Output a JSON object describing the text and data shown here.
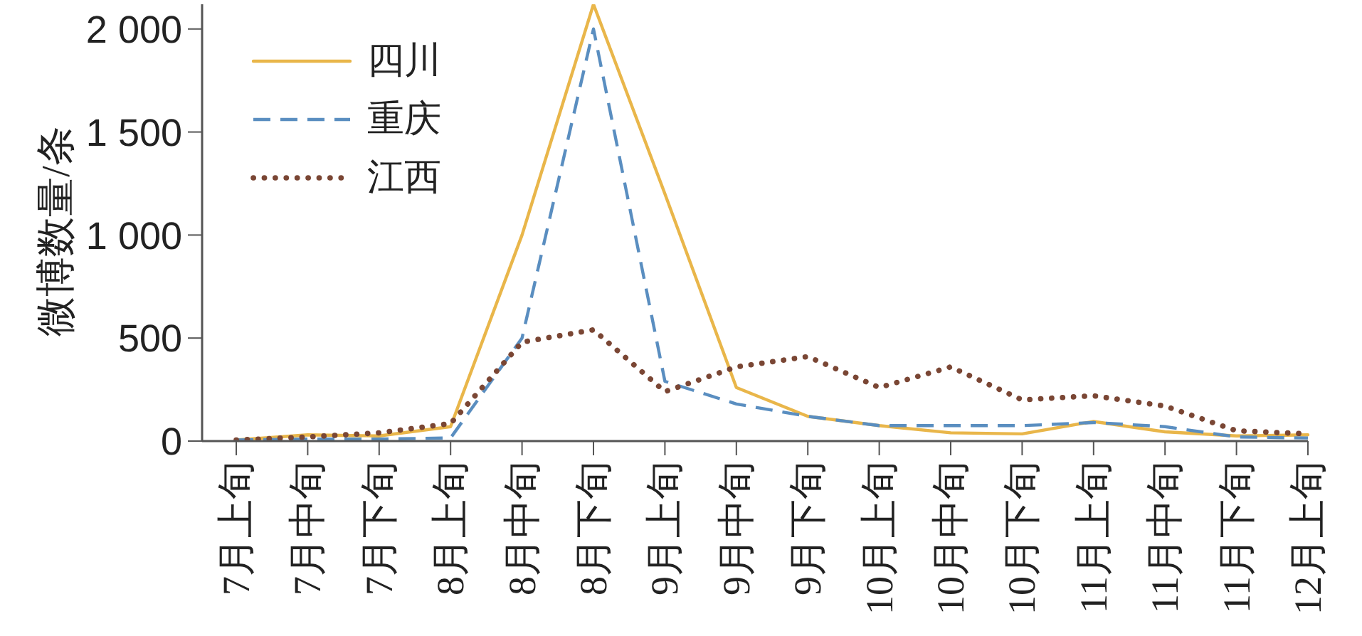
{
  "chart_data": {
    "type": "line",
    "ylabel": "微博数量/条",
    "categories": [
      "7月上旬",
      "7月中旬",
      "7月下旬",
      "8月上旬",
      "8月中旬",
      "8月下旬",
      "9月上旬",
      "9月中旬",
      "9月下旬",
      "10月上旬",
      "10月中旬",
      "10月下旬",
      "11月上旬",
      "11月中旬",
      "11月下旬",
      "12月上旬"
    ],
    "series": [
      {
        "name": "四川",
        "color": "#e9b64a",
        "line_style": "solid",
        "values": [
          5,
          30,
          25,
          70,
          1000,
          2120,
          1200,
          260,
          120,
          75,
          40,
          35,
          95,
          45,
          25,
          30
        ]
      },
      {
        "name": "重庆",
        "color": "#5a8ec0",
        "line_style": "dashed",
        "values": [
          5,
          10,
          10,
          15,
          500,
          2000,
          290,
          180,
          120,
          75,
          75,
          75,
          90,
          70,
          20,
          15
        ]
      },
      {
        "name": "江西",
        "color": "#7a4634",
        "line_style": "dotted",
        "values": [
          5,
          20,
          40,
          85,
          480,
          540,
          240,
          360,
          410,
          260,
          360,
          200,
          220,
          170,
          50,
          35
        ]
      }
    ],
    "ylim": [
      0,
      2120
    ],
    "yticks": [
      0,
      500,
      {
        "value": 1000,
        "label": "1 000"
      },
      {
        "value": 1500,
        "label": "1 500"
      },
      {
        "value": 2000,
        "label": "2 000"
      }
    ],
    "legend": "top left",
    "marker": "none"
  }
}
